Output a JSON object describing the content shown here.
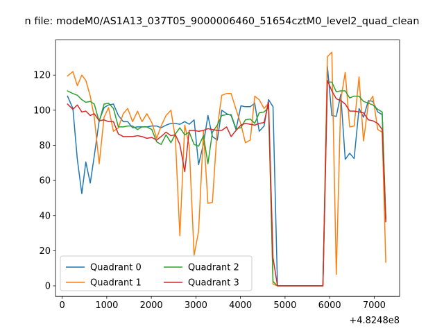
{
  "chart_data": {
    "type": "line",
    "title": "n file: modeM0/AS1A13_037T05_9000006460_51654cztM0_level2_quad_clean",
    "xlabel": "",
    "ylabel": "",
    "x_offset_label": "+4.8248e8",
    "xlim": [
      -150,
      7570
    ],
    "ylim": [
      -6,
      140
    ],
    "xticks": [
      0,
      1000,
      2000,
      3000,
      4000,
      5000,
      6000,
      7000
    ],
    "xtick_labels": [
      "0",
      "1000",
      "2000",
      "3000",
      "4000",
      "5000",
      "6000",
      "7000"
    ],
    "yticks": [
      0,
      20,
      40,
      60,
      80,
      100,
      120
    ],
    "ytick_labels": [
      "0",
      "20",
      "40",
      "60",
      "80",
      "100",
      "120"
    ],
    "grid": false,
    "legend": {
      "placement": "lower-left",
      "columns": 2
    },
    "x": [
      120,
      240,
      340,
      440,
      530,
      630,
      720,
      830,
      940,
      1040,
      1150,
      1260,
      1370,
      1470,
      1580,
      1690,
      1790,
      1900,
      2010,
      2120,
      2220,
      2330,
      2440,
      2540,
      2640,
      2750,
      2850,
      2960,
      3060,
      3170,
      3270,
      3370,
      3480,
      3580,
      3690,
      3790,
      3900,
      4010,
      4110,
      4220,
      4320,
      4420,
      4530,
      4630,
      4730,
      4830,
      4930,
      5850,
      5950,
      6050,
      6150,
      6250,
      6350,
      6450,
      6550,
      6660,
      6760,
      6870,
      6970,
      7080,
      7180,
      7260
    ],
    "series": [
      {
        "name": "Quadrant 0",
        "color": "#1f77b4",
        "values": [
          108,
          101,
          72,
          52.5,
          70.5,
          58.5,
          74,
          94,
          101.5,
          103,
          103.5,
          97,
          93.5,
          93.5,
          90,
          90.5,
          90.5,
          90.5,
          91,
          91,
          90,
          91.5,
          92.5,
          92.5,
          92,
          93.5,
          92,
          94.5,
          69,
          81,
          97,
          85,
          83,
          100,
          98,
          97,
          89,
          102.5,
          102,
          102,
          104,
          88,
          91,
          106,
          102,
          0,
          0,
          0,
          125,
          97,
          96.5,
          109,
          72,
          75.5,
          72.5,
          101,
          96,
          105.5,
          105,
          99,
          97.5,
          38
        ]
      },
      {
        "name": "Quadrant 1",
        "color": "#ff7f0e",
        "values": [
          119.5,
          122,
          114,
          120,
          117,
          108,
          96,
          69.5,
          96,
          101.5,
          88,
          90,
          98,
          101,
          93.5,
          99.5,
          93.5,
          98,
          93,
          84,
          91,
          97,
          100,
          84,
          28.5,
          91.5,
          80,
          17.5,
          31,
          88,
          47,
          47.5,
          90,
          108.5,
          109.5,
          109.5,
          100.5,
          92,
          81.5,
          83,
          108,
          106,
          101,
          104,
          1,
          0,
          0,
          0,
          130.5,
          133,
          6.5,
          106,
          121.5,
          90.5,
          91,
          119,
          82.5,
          104,
          108,
          89,
          87.5,
          13.5
        ]
      },
      {
        "name": "Quadrant 2",
        "color": "#2ca02c",
        "values": [
          111,
          109.5,
          108.5,
          106,
          104.5,
          105,
          103.5,
          93.5,
          103.5,
          104,
          101,
          90.5,
          90.5,
          91,
          91,
          89,
          90.5,
          90.5,
          89,
          82,
          80.5,
          86,
          81.5,
          86.5,
          90,
          86,
          87.5,
          80.5,
          79.5,
          85.5,
          69.5,
          87.5,
          91.5,
          97,
          97.5,
          97.5,
          89.5,
          90,
          94.5,
          95,
          92.5,
          98.5,
          99,
          101.5,
          2.5,
          0,
          0,
          0,
          116,
          116,
          110.5,
          111,
          111,
          107,
          108,
          108,
          105,
          104,
          103,
          100.5,
          99,
          38.5
        ]
      },
      {
        "name": "Quadrant 3",
        "color": "#d62728",
        "values": [
          103.5,
          100.5,
          103,
          99,
          99.5,
          97,
          98,
          94,
          94.5,
          93.5,
          93.5,
          86.5,
          85,
          85,
          85,
          85.5,
          85,
          84,
          84.5,
          83,
          85,
          87.5,
          85.5,
          86,
          80.5,
          65,
          88.5,
          88.5,
          88,
          88.5,
          89.5,
          89,
          88.5,
          88.5,
          90.5,
          85,
          88.5,
          91.5,
          92.5,
          92,
          91.5,
          92.5,
          93,
          104.5,
          16,
          0,
          0,
          0,
          117,
          111,
          106.5,
          105.5,
          103.5,
          99.5,
          99.5,
          99,
          98.5,
          94.5,
          94,
          92.5,
          89,
          36.5
        ]
      }
    ]
  }
}
